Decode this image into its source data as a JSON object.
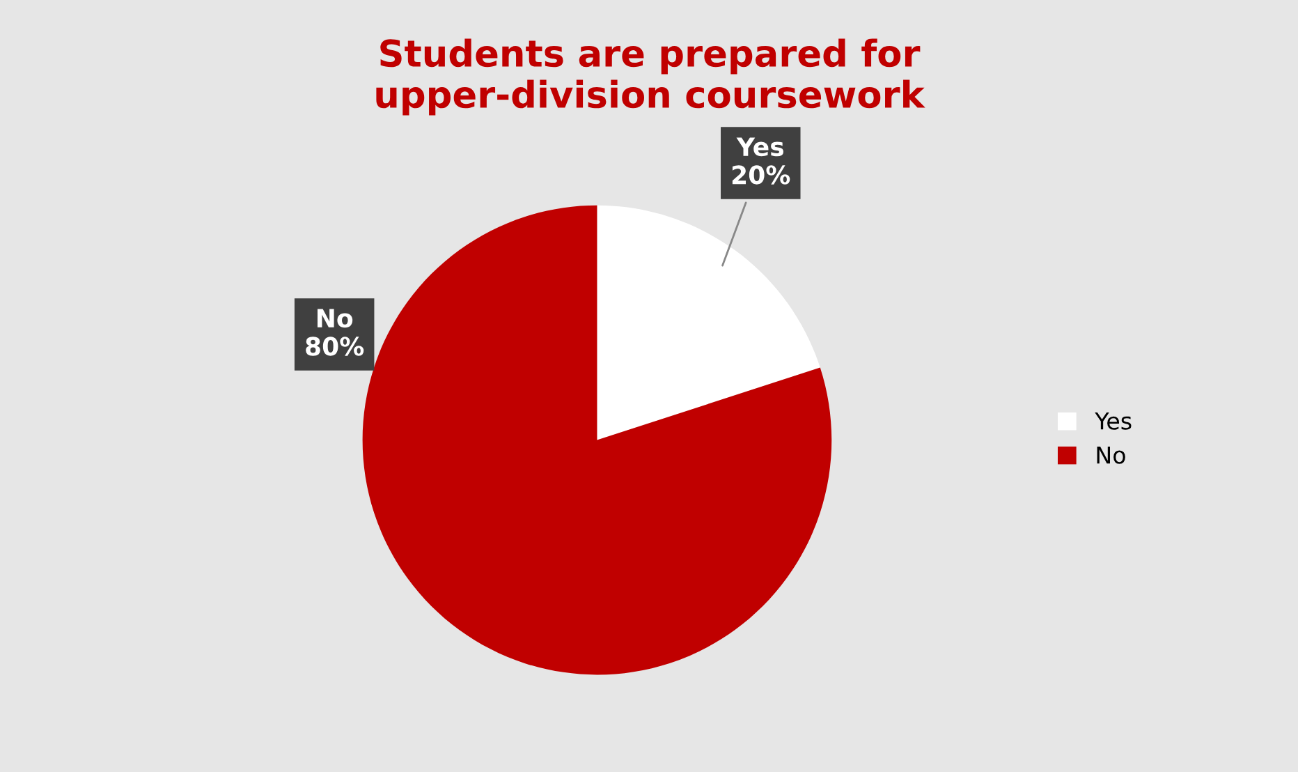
{
  "chart_data": {
    "type": "pie",
    "title": "Students are prepared for\nupper-division coursework",
    "categories": [
      "Yes",
      "No"
    ],
    "values": [
      20,
      80
    ],
    "colors": [
      "#ffffff",
      "#c00000"
    ],
    "value_labels": [
      "20%",
      "80%"
    ],
    "legend": "right"
  }
}
